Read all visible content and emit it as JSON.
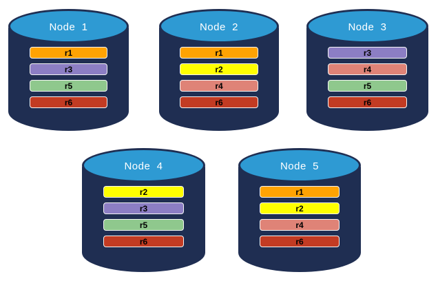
{
  "diagram": {
    "description": "Five database nodes showing distribution of replicas r1-r6",
    "colors": {
      "cylinder_body": "#1F2E52",
      "cylinder_top": "#2E9AD3",
      "background": "#FFFFFF",
      "node_label_text": "#FFFFFF",
      "replica_label_text": "#000000"
    },
    "replica_colors": {
      "r1": "#FFA303",
      "r2": "#FFFF00",
      "r3": "#8C7EC4",
      "r4": "#DF8377",
      "r5": "#8FC88D",
      "r6": "#C23B23"
    },
    "nodes": [
      {
        "label": "Node  1",
        "replicas": [
          "r1",
          "r3",
          "r5",
          "r6"
        ]
      },
      {
        "label": "Node  2",
        "replicas": [
          "r1",
          "r2",
          "r4",
          "r6"
        ]
      },
      {
        "label": "Node  3",
        "replicas": [
          "r3",
          "r4",
          "r5",
          "r6"
        ]
      },
      {
        "label": "Node  4",
        "replicas": [
          "r2",
          "r3",
          "r5",
          "r6"
        ]
      },
      {
        "label": "Node  5",
        "replicas": [
          "r1",
          "r2",
          "r4",
          "r6"
        ]
      }
    ]
  }
}
